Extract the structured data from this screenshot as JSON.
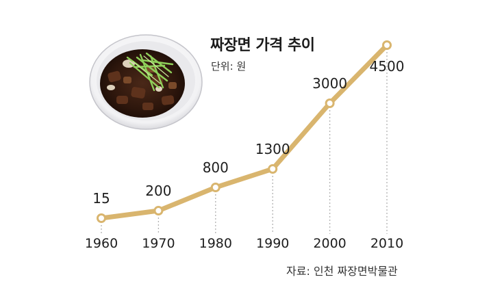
{
  "chart_data": {
    "type": "line",
    "title": "짜장면 가격 추이",
    "subtitle": "단위: 원",
    "source": "자료: 인천 짜장면박물관",
    "x": [
      "1960",
      "1970",
      "1980",
      "1990",
      "2000",
      "2010"
    ],
    "values": [
      15,
      200,
      800,
      1300,
      3000,
      4500
    ],
    "data_labels": [
      "15",
      "200",
      "800",
      "1300",
      "3000",
      "4500"
    ],
    "xlabel": "",
    "ylabel": "",
    "ylim": [
      0,
      4500
    ],
    "grid": false,
    "legend": "none",
    "colors": {
      "line": "#d9b56e",
      "marker_fill": "#ffffff",
      "marker_stroke": "#d9b56e",
      "drop_line": "#b0b0b0",
      "text": "#1e1e1e"
    }
  },
  "image": {
    "icon": "jjajangmyeon-bowl-icon"
  }
}
